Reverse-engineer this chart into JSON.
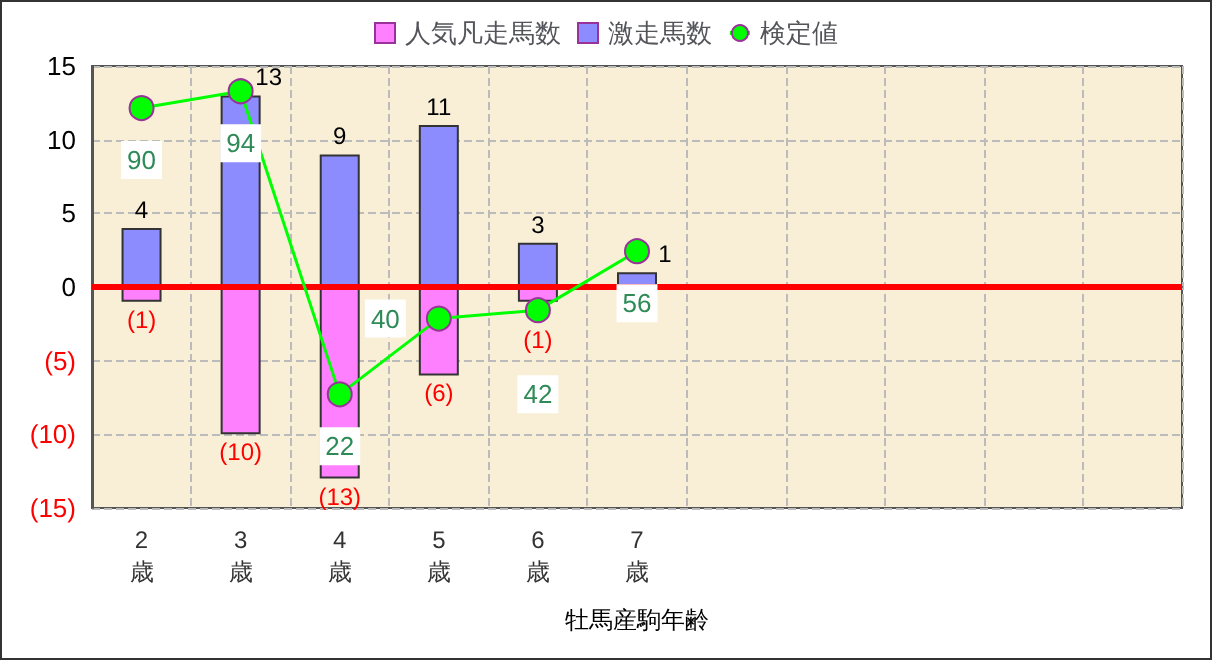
{
  "chart_data": {
    "type": "bar",
    "stacked": true,
    "xlabel": "牡馬産駒年齢",
    "categories": [
      "2歳",
      "3歳",
      "4歳",
      "5歳",
      "6歳",
      "7歳",
      null,
      null,
      null,
      null,
      null
    ],
    "series": [
      {
        "name": "人気凡走馬数",
        "color": "#ff80ff",
        "values": [
          -1,
          -10,
          -13,
          -6,
          -1,
          null,
          null,
          null,
          null,
          null,
          null
        ],
        "value_labels": [
          "(1)",
          "(10)",
          "(13)",
          "(6)",
          "(1)",
          null,
          null,
          null,
          null,
          null,
          null
        ]
      },
      {
        "name": "激走馬数",
        "color": "#8c8cff",
        "values": [
          4,
          13,
          9,
          11,
          3,
          1,
          null,
          null,
          null,
          null,
          null
        ],
        "value_labels": [
          "4",
          "13",
          "9",
          "11",
          "3",
          "1",
          null,
          null,
          null,
          null,
          null
        ]
      },
      {
        "name": "検定値",
        "type": "line",
        "axis": "y2",
        "color": "#00ff00",
        "marker": "circle",
        "data_labels": true,
        "values": [
          90,
          94,
          22,
          40,
          42,
          56,
          null,
          null,
          null,
          null,
          null
        ]
      }
    ],
    "ylim": [
      -15,
      15
    ],
    "yticks": [
      {
        "value": -15,
        "label": "(15)"
      },
      {
        "value": -10,
        "label": "(10)"
      },
      {
        "value": -5,
        "label": "(5)"
      },
      0,
      5,
      10,
      15
    ],
    "y2lim": [
      -5,
      100
    ],
    "tick_labels": "xy",
    "ref_lines": [
      {
        "axis": "y",
        "value": 0,
        "color": "#ff0000"
      }
    ],
    "grid": true,
    "legend": "top"
  }
}
